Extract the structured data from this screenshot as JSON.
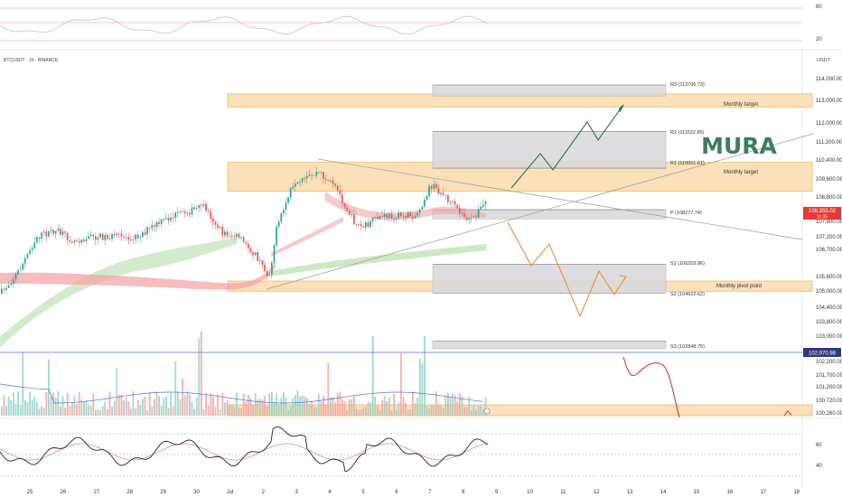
{
  "chart_data": {
    "type": "line",
    "symbol": "BTCUSDT · 1h · BINANCE",
    "currency": "USDT",
    "watermark": "MURA",
    "x_ticks": [
      "25",
      "26",
      "27",
      "28",
      "29",
      "30",
      "Jul",
      "2",
      "3",
      "4",
      "5",
      "6",
      "7",
      "8",
      "9",
      "10",
      "11",
      "12",
      "13",
      "14",
      "15",
      "16",
      "17",
      "18"
    ],
    "y_ticks": [
      "114,000.00",
      "113,000.00",
      "112,000.00",
      "111,200.00",
      "110,400.00",
      "109,600.00",
      "108,800.00",
      "107,800.00",
      "107,200.00",
      "106,700.00",
      "105,800.00",
      "105,000.00",
      "104,400.00",
      "103,800.00",
      "103,000.00",
      "102,200.00",
      "101,700.00",
      "101,200.00",
      "100,720.00",
      "100,260.00"
    ],
    "top_indicator_ticks": [
      "60",
      "20"
    ],
    "rsi_ticks": [
      "60",
      "40"
    ],
    "current_price": "108,355.02",
    "countdown": "11:35",
    "marked_level": "102,970.98",
    "pivots": [
      {
        "label": "R3 (113706.73)",
        "value": 113706.73
      },
      {
        "label": "R2 (111632.85)",
        "value": 111632.85
      },
      {
        "label": "R1 (110051.61)",
        "value": 110051.61
      },
      {
        "label": "P (108277.74)",
        "value": 108277.74
      },
      {
        "label": "S1 (106203.86)",
        "value": 106203.86
      },
      {
        "label": "S2 (104922.62)",
        "value": 104922.62
      },
      {
        "label": "S3 (102848.75)",
        "value": 102848.75
      }
    ],
    "zones": [
      {
        "label": "Monthly target"
      },
      {
        "label": "Monthly target"
      },
      {
        "label": "Monthly pivot point"
      }
    ],
    "colors": {
      "zone": "#fbe0b8",
      "zone_border": "#f2b25c",
      "pivot_box": "#d8d8dc",
      "up": "#26a69a",
      "down": "#ef5350",
      "projection_up": "#1e7a4a",
      "projection_down": "#f28c28",
      "projection_red": "#d62828",
      "watermark": "#3b7f5a",
      "price_tag": "#e53935",
      "marked_tag": "#2962ff",
      "rsi": "#333333"
    }
  }
}
